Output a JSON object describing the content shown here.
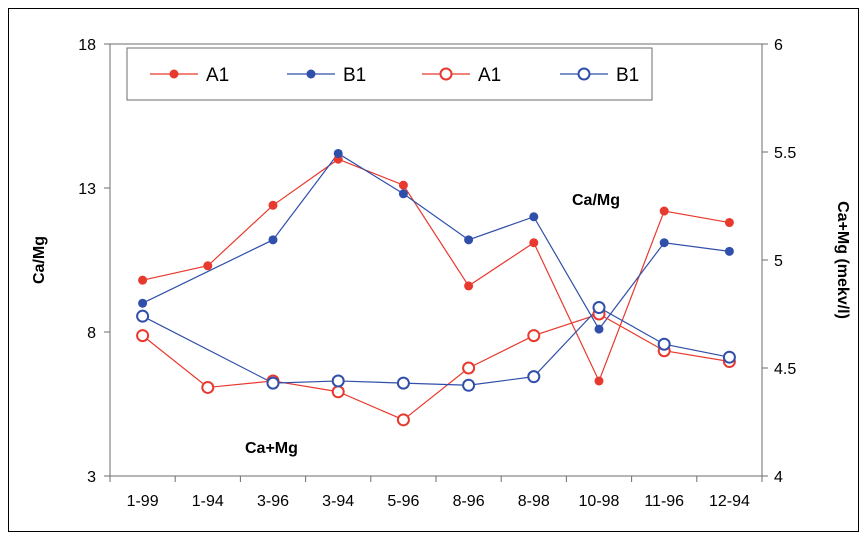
{
  "chart_data": {
    "type": "line",
    "categories": [
      "1-99",
      "1-94",
      "3-96",
      "3-94",
      "5-96",
      "8-96",
      "8-98",
      "10-98",
      "11-96",
      "12-94"
    ],
    "y_left": {
      "label": "Ca/Mg",
      "range": [
        3,
        18
      ],
      "ticks": [
        "3",
        "8",
        "13",
        "18"
      ]
    },
    "y_right": {
      "label": "Ca+Mg (mekv/l)",
      "range": [
        4,
        6
      ],
      "ticks": [
        "4",
        "4.5",
        "5",
        "5.5",
        "6"
      ]
    },
    "series": [
      {
        "name": "A1",
        "axis": "left",
        "marker": "filled",
        "color": "#e8392f",
        "values": [
          9.8,
          10.3,
          12.4,
          14.0,
          13.1,
          9.6,
          11.1,
          6.3,
          12.2,
          11.8
        ]
      },
      {
        "name": "B1",
        "axis": "left",
        "marker": "filled",
        "color": "#2f4faa",
        "values": [
          9.0,
          null,
          11.2,
          14.2,
          12.8,
          11.2,
          12.0,
          8.1,
          11.1,
          10.8
        ]
      },
      {
        "name": "A1",
        "axis": "right",
        "marker": "open",
        "color": "#e8392f",
        "values": [
          4.65,
          4.41,
          4.44,
          4.39,
          4.26,
          4.5,
          4.65,
          4.75,
          4.58,
          4.53
        ]
      },
      {
        "name": "B1",
        "axis": "right",
        "marker": "open",
        "color": "#2f4faa",
        "values": [
          4.74,
          null,
          4.43,
          4.44,
          4.43,
          4.42,
          4.46,
          4.78,
          4.61,
          4.55
        ]
      }
    ],
    "annotations": [
      "Ca/Mg",
      "Ca+Mg"
    ],
    "legend_placement": "top-left",
    "grid": false
  }
}
